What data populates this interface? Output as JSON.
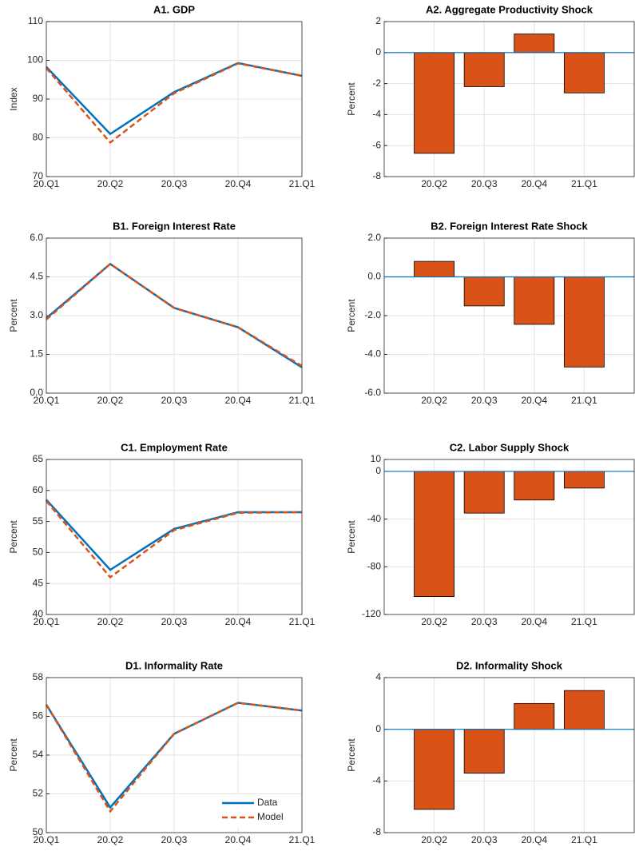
{
  "chart_data": [
    {
      "type": "line",
      "title": "A1. GDP",
      "y_label": "Index",
      "categories": [
        "20.Q1",
        "20.Q2",
        "20.Q3",
        "20.Q4",
        "21.Q1"
      ],
      "series": [
        {
          "name": "Data",
          "color": "#0072BD",
          "values": [
            98.3,
            81,
            91.8,
            99.3,
            96
          ]
        },
        {
          "name": "Model",
          "color": "#D95319",
          "dashed": true,
          "values": [
            98,
            78.8,
            91.5,
            99.2,
            96
          ]
        }
      ],
      "ylim": [
        70,
        110
      ],
      "yticks": [
        70,
        80,
        90,
        100,
        110
      ],
      "grid": true
    },
    {
      "type": "bar",
      "title": "A2. Aggregate Productivity Shock",
      "y_label": "Percent",
      "categories": [
        "20.Q2",
        "20.Q3",
        "20.Q4",
        "21.Q1"
      ],
      "values": [
        -6.5,
        -2.2,
        1.2,
        -2.6
      ],
      "color": "#D95319",
      "ylim": [
        -8,
        2
      ],
      "yticks": [
        -8,
        -6,
        -4,
        -2,
        0,
        2
      ],
      "grid": true
    },
    {
      "type": "line",
      "title": "B1. Foreign Interest Rate",
      "y_label": "Percent",
      "categories": [
        "20.Q1",
        "20.Q2",
        "20.Q3",
        "20.Q4",
        "21.Q1"
      ],
      "series": [
        {
          "name": "Data",
          "color": "#0072BD",
          "values": [
            2.9,
            5.0,
            3.3,
            2.55,
            1.0
          ]
        },
        {
          "name": "Model",
          "color": "#D95319",
          "dashed": true,
          "values": [
            2.85,
            5.0,
            3.3,
            2.55,
            1.05
          ]
        }
      ],
      "ylim": [
        0,
        6
      ],
      "yticks": [
        {
          "value": 0,
          "label": "0.0"
        },
        1.5,
        {
          "value": 3,
          "label": "3.0"
        },
        4.5,
        {
          "value": 6,
          "label": "6.0"
        }
      ],
      "grid": true
    },
    {
      "type": "bar",
      "title": "B2. Foreign Interest Rate Shock",
      "y_label": "Percent",
      "categories": [
        "20.Q2",
        "20.Q3",
        "20.Q4",
        "21.Q1"
      ],
      "values": [
        0.8,
        -1.5,
        -2.45,
        -4.65
      ],
      "color": "#D95319",
      "ylim": [
        -6,
        2
      ],
      "yticks": [
        {
          "value": -6,
          "label": "-6.0"
        },
        {
          "value": -4,
          "label": "-4.0"
        },
        {
          "value": -2,
          "label": "-2.0"
        },
        {
          "value": 0,
          "label": "0.0"
        },
        {
          "value": 2,
          "label": "2.0"
        }
      ],
      "grid": true
    },
    {
      "type": "line",
      "title": "C1. Employment Rate",
      "y_label": "Percent",
      "categories": [
        "20.Q1",
        "20.Q2",
        "20.Q3",
        "20.Q4",
        "21.Q1"
      ],
      "series": [
        {
          "name": "Data",
          "color": "#0072BD",
          "values": [
            58.5,
            47.2,
            53.8,
            56.5,
            56.5
          ]
        },
        {
          "name": "Model",
          "color": "#D95319",
          "dashed": true,
          "values": [
            58.3,
            46,
            53.6,
            56.4,
            56.5
          ]
        }
      ],
      "ylim": [
        40,
        65
      ],
      "yticks": [
        40,
        45,
        50,
        55,
        60,
        65
      ],
      "grid": true
    },
    {
      "type": "bar",
      "title": "C2. Labor Supply Shock",
      "y_label": "Percent",
      "categories": [
        "20.Q2",
        "20.Q3",
        "20.Q4",
        "21.Q1"
      ],
      "values": [
        -105,
        -35,
        -24,
        -14
      ],
      "color": "#D95319",
      "ylim": [
        -120,
        10
      ],
      "yticks": [
        -120,
        -80,
        -40,
        0,
        10
      ],
      "grid": true
    },
    {
      "type": "line",
      "title": "D1. Informality Rate",
      "y_label": "Percent",
      "categories": [
        "20.Q1",
        "20.Q2",
        "20.Q3",
        "20.Q4",
        "21.Q1"
      ],
      "series": [
        {
          "name": "Data",
          "color": "#0072BD",
          "values": [
            56.6,
            51.3,
            55.1,
            56.7,
            56.3
          ]
        },
        {
          "name": "Model",
          "color": "#D95319",
          "dashed": true,
          "values": [
            56.6,
            51.1,
            55.1,
            56.7,
            56.3
          ]
        }
      ],
      "ylim": [
        50,
        58
      ],
      "yticks": [
        50,
        52,
        54,
        56,
        58
      ],
      "grid": true,
      "legend": "lower right"
    },
    {
      "type": "bar",
      "title": "D2. Informality Shock",
      "y_label": "Percent",
      "categories": [
        "20.Q2",
        "20.Q3",
        "20.Q4",
        "21.Q1"
      ],
      "values": [
        -6.2,
        -3.4,
        2.0,
        3.0
      ],
      "color": "#D95319",
      "ylim": [
        -8,
        4
      ],
      "yticks": [
        -8,
        -4,
        0,
        4
      ],
      "grid": true
    }
  ]
}
